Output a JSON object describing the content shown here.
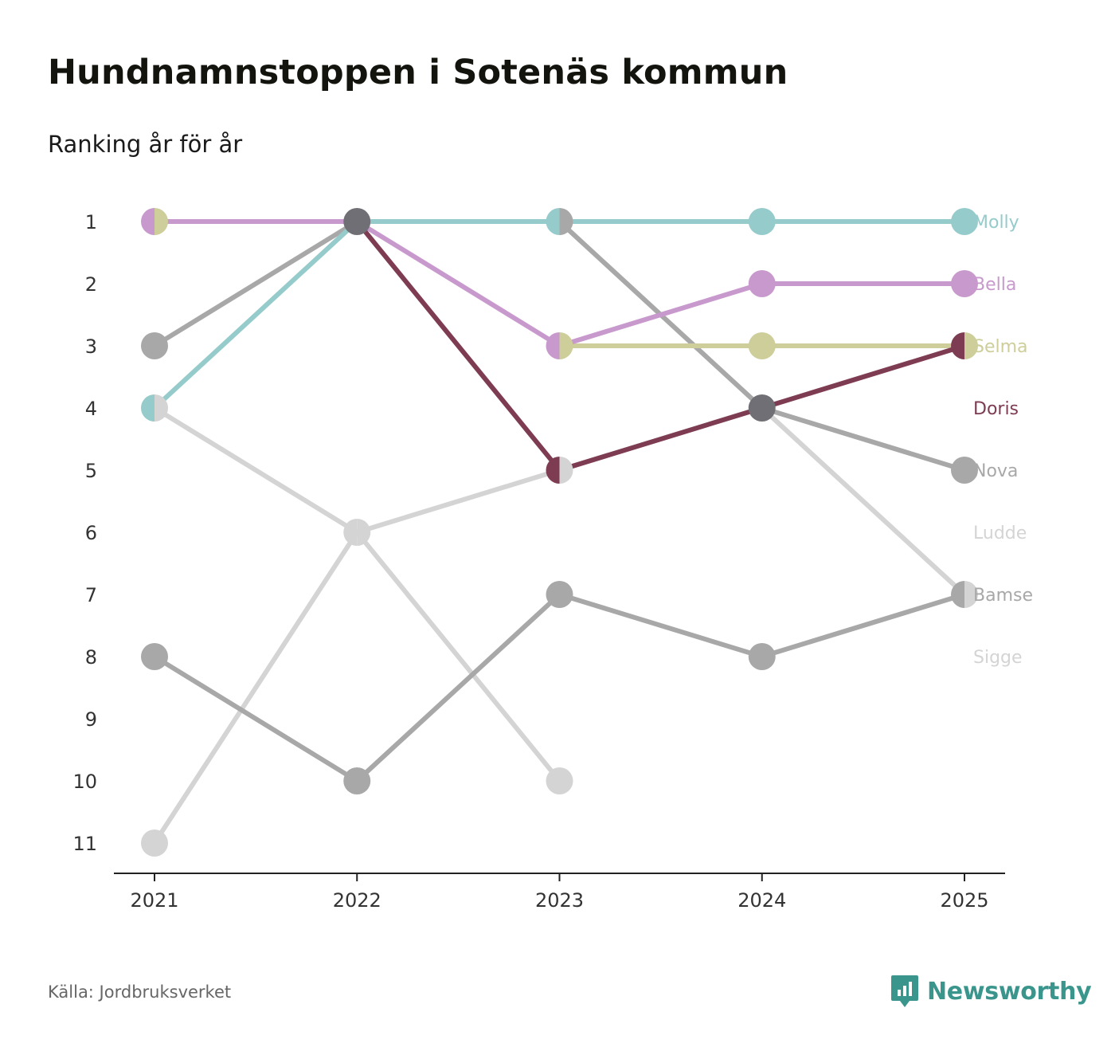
{
  "title": "Hundnamnstoppen i Sotenäs kommun",
  "subtitle": "Ranking år för år",
  "source": "Källa: Jordbruksverket",
  "brand": {
    "name": "Newsworthy",
    "icon": "newsworthy-logo-icon",
    "color": "#3a958c"
  },
  "chart_data": {
    "type": "line",
    "title": "Hundnamnstoppen i Sotenäs kommun",
    "subtitle": "Ranking år för år",
    "categories": [
      "2021",
      "2022",
      "2023",
      "2024",
      "2025"
    ],
    "y_ticks": [
      "1",
      "2",
      "3",
      "4",
      "5",
      "6",
      "7",
      "8",
      "9",
      "10",
      "11"
    ],
    "ylim": [
      1,
      11
    ],
    "y_inverted": true,
    "grid": false,
    "legend": "right-end labels",
    "series": [
      {
        "name": "Ludde",
        "color": "#d4d4d4",
        "values": [
          4,
          6,
          10,
          null,
          null
        ]
      },
      {
        "name": "Sigge",
        "color": "#d4d4d4",
        "values": [
          11,
          6,
          5,
          4,
          7
        ]
      },
      {
        "name": "Bamse",
        "color": "#a8a8a8",
        "values": [
          8,
          10,
          7,
          8,
          7
        ]
      },
      {
        "name": "Nova",
        "color": "#a8a8a8",
        "values": [
          3,
          1,
          1,
          4,
          5
        ]
      },
      {
        "name": "Selma",
        "color": "#cdce9a",
        "values": [
          1,
          null,
          3,
          3,
          3
        ]
      },
      {
        "name": "Molly",
        "color": "#96cbcb",
        "values": [
          4,
          1,
          1,
          1,
          1
        ]
      },
      {
        "name": "Bella",
        "color": "#c899cd",
        "values": [
          1,
          1,
          3,
          2,
          2
        ]
      },
      {
        "name": "Doris",
        "color": "#7e3c52",
        "values": [
          null,
          1,
          5,
          4,
          3
        ]
      }
    ],
    "label_order": [
      "Molly",
      "Bella",
      "Selma",
      "Doris",
      "Nova",
      "Ludde",
      "Bamse",
      "Sigge"
    ],
    "label_ranks": [
      1,
      2,
      3,
      4,
      5,
      6,
      7,
      8
    ],
    "tie_color": "#6f6f75"
  }
}
